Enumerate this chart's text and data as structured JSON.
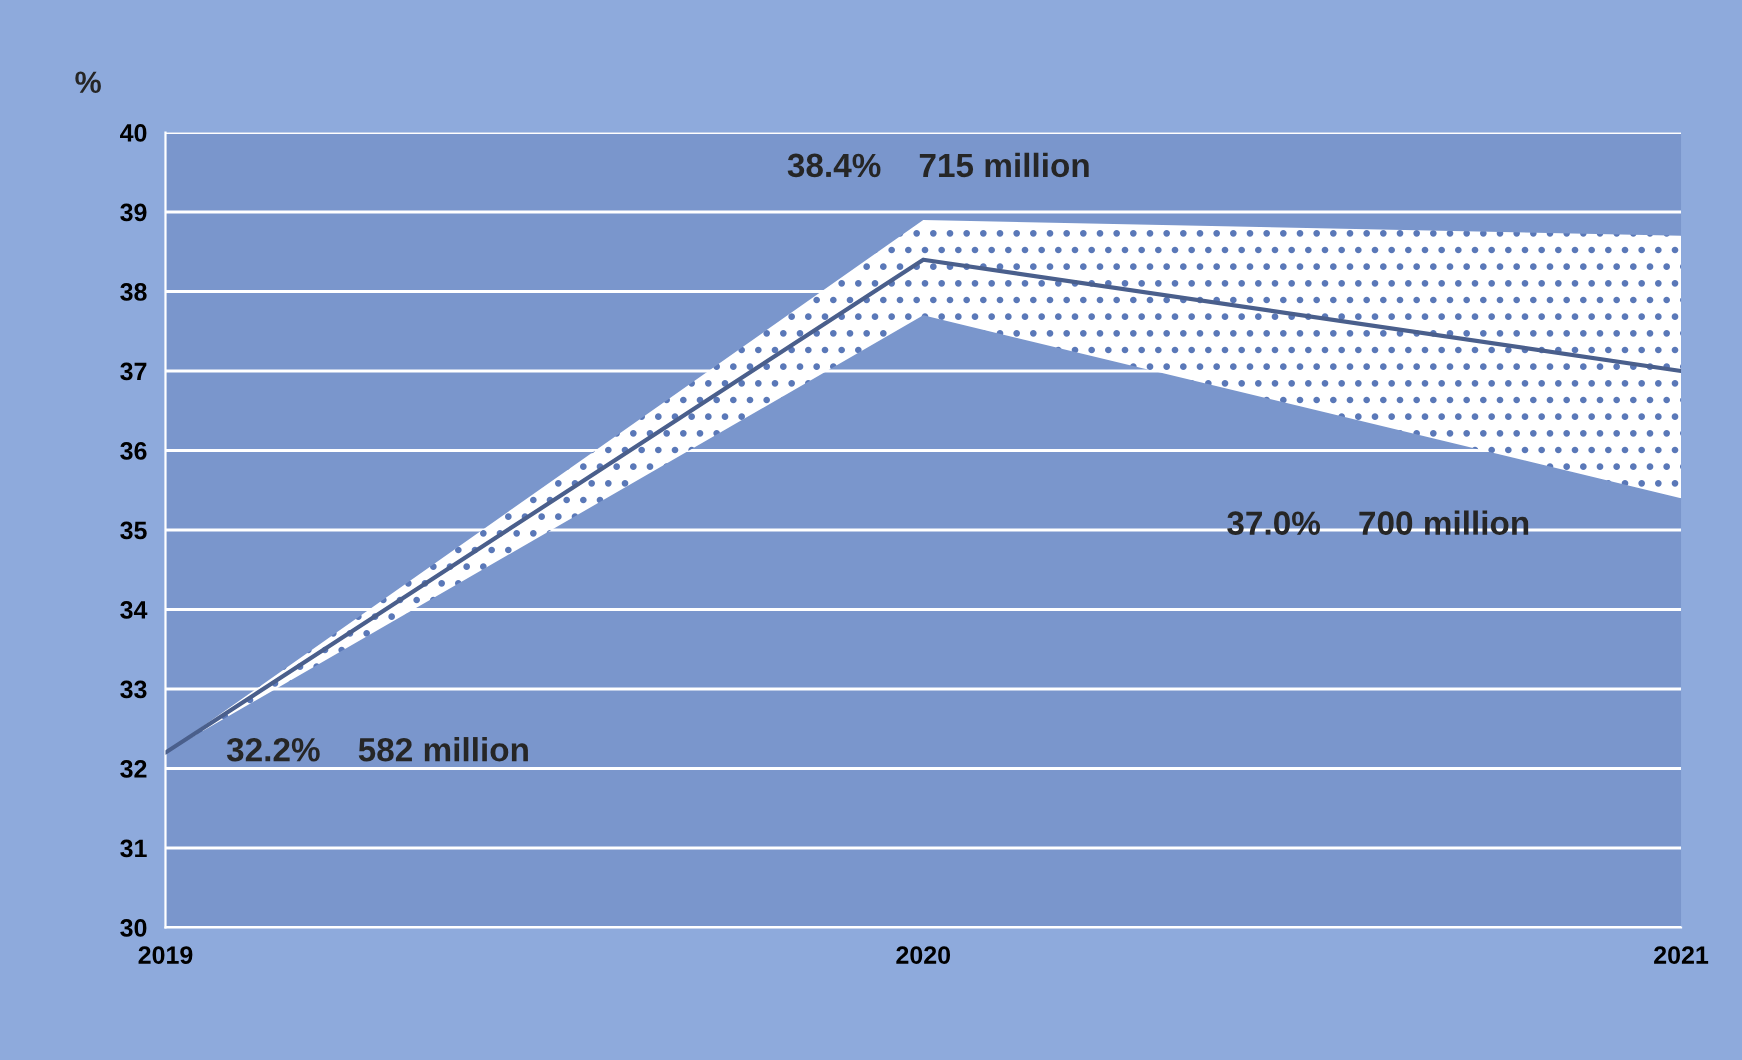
{
  "chart_data": {
    "type": "line",
    "ylabel": "%",
    "categories": [
      "2019",
      "2020",
      "2021"
    ],
    "series": [
      {
        "color": "#4a5f8c",
        "values": [
          32.2,
          38.4,
          37.0
        ],
        "lower": [
          32.2,
          37.7,
          35.4
        ],
        "upper": [
          32.2,
          38.9,
          38.7
        ]
      }
    ],
    "ylim": [
      30,
      40
    ],
    "yticks": [
      30,
      31,
      32,
      33,
      34,
      35,
      36,
      37,
      38,
      39,
      40
    ],
    "grid": "y",
    "marker": "none",
    "line_style": "solid",
    "annotations": [
      "32.2%    582 million",
      "38.4%    715 million",
      "37.0%    700 million"
    ]
  }
}
